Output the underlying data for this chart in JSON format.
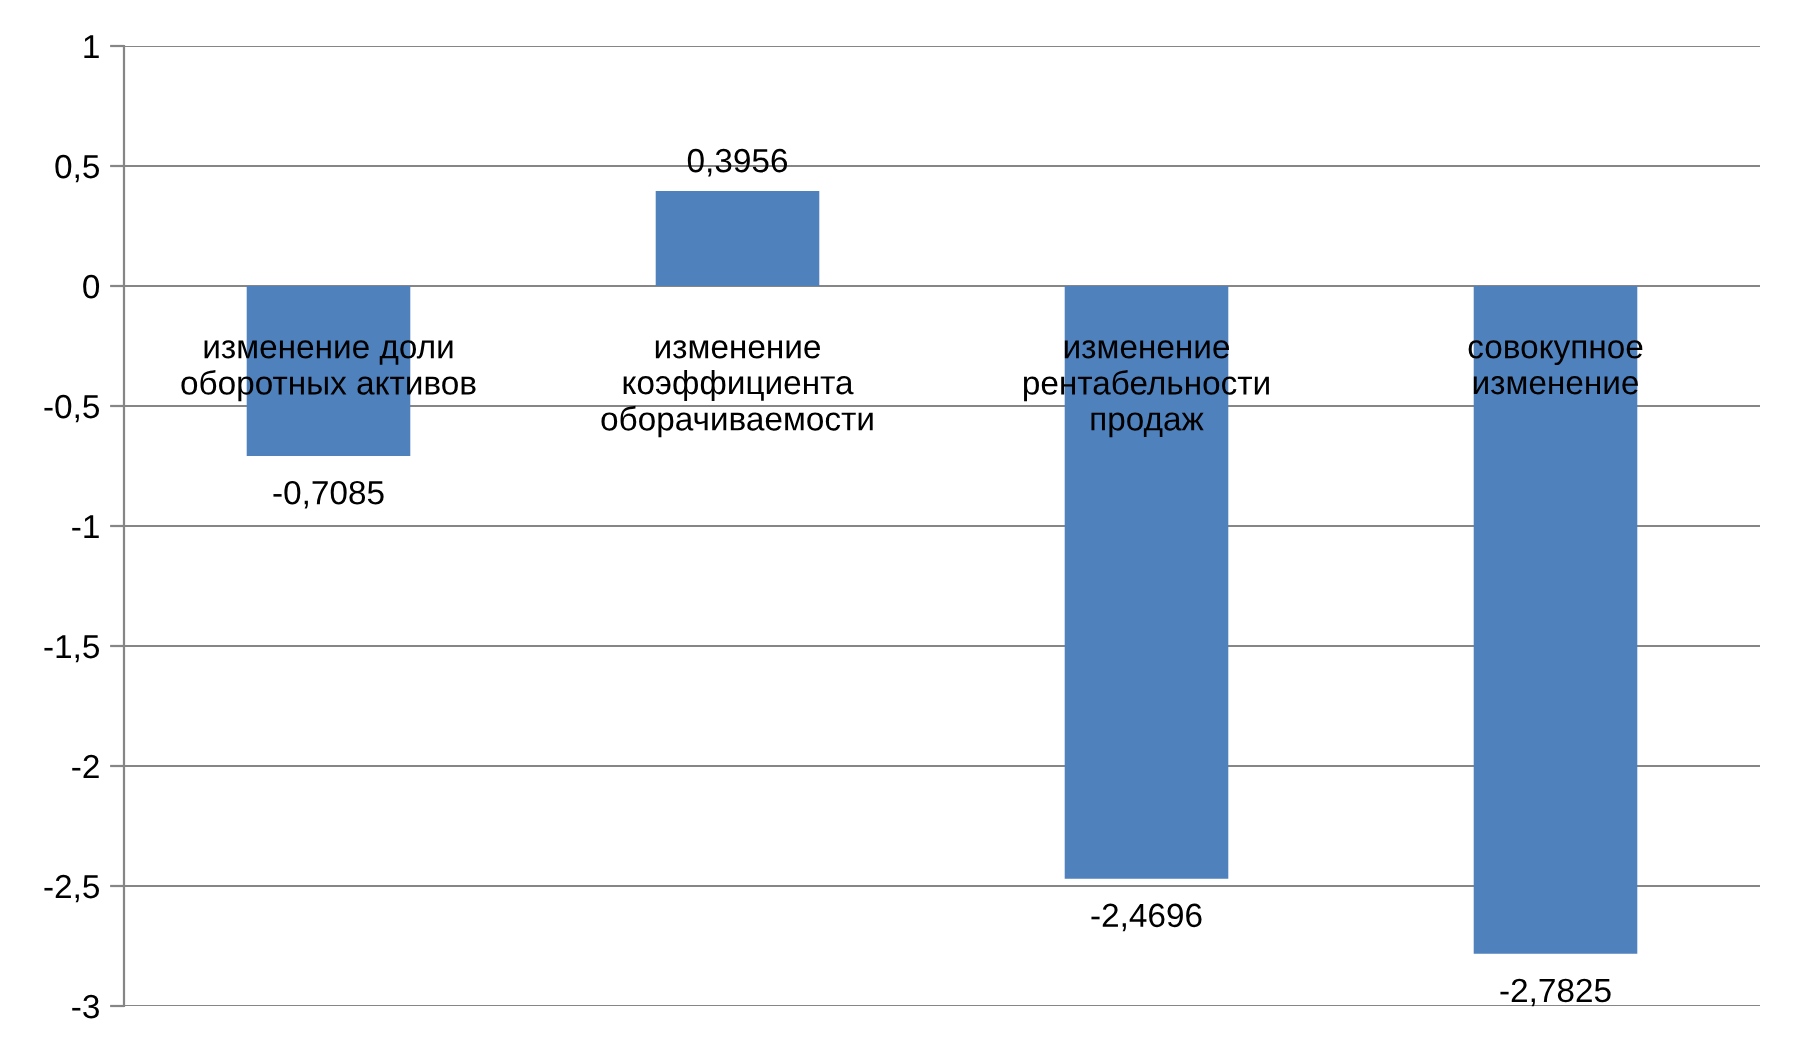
{
  "chart_data": {
    "type": "bar",
    "categories": [
      "изменение доли\nоборотных активов",
      "изменение\nкоэффициента\nоборачиваемости",
      "изменение\nрентабельности\nпродаж",
      "совокупное\nизменение"
    ],
    "values": [
      -0.7085,
      0.3956,
      -2.4696,
      -2.7825
    ],
    "value_labels": [
      "-0,7085",
      "0,3956",
      "-2,4696",
      "-2,7825"
    ],
    "color": "#4f81bd",
    "ylim": [
      -3,
      1
    ],
    "yticks": [
      {
        "value": -3,
        "label": "-3"
      },
      {
        "value": -2.5,
        "label": "-2,5"
      },
      {
        "value": -2,
        "label": "-2"
      },
      {
        "value": -1.5,
        "label": "-1,5"
      },
      {
        "value": -1,
        "label": "-1"
      },
      {
        "value": -0.5,
        "label": "-0,5"
      },
      {
        "value": 0,
        "label": "0"
      },
      {
        "value": 0.5,
        "label": "0,5"
      },
      {
        "value": 1,
        "label": "1"
      }
    ],
    "grid": "y"
  }
}
